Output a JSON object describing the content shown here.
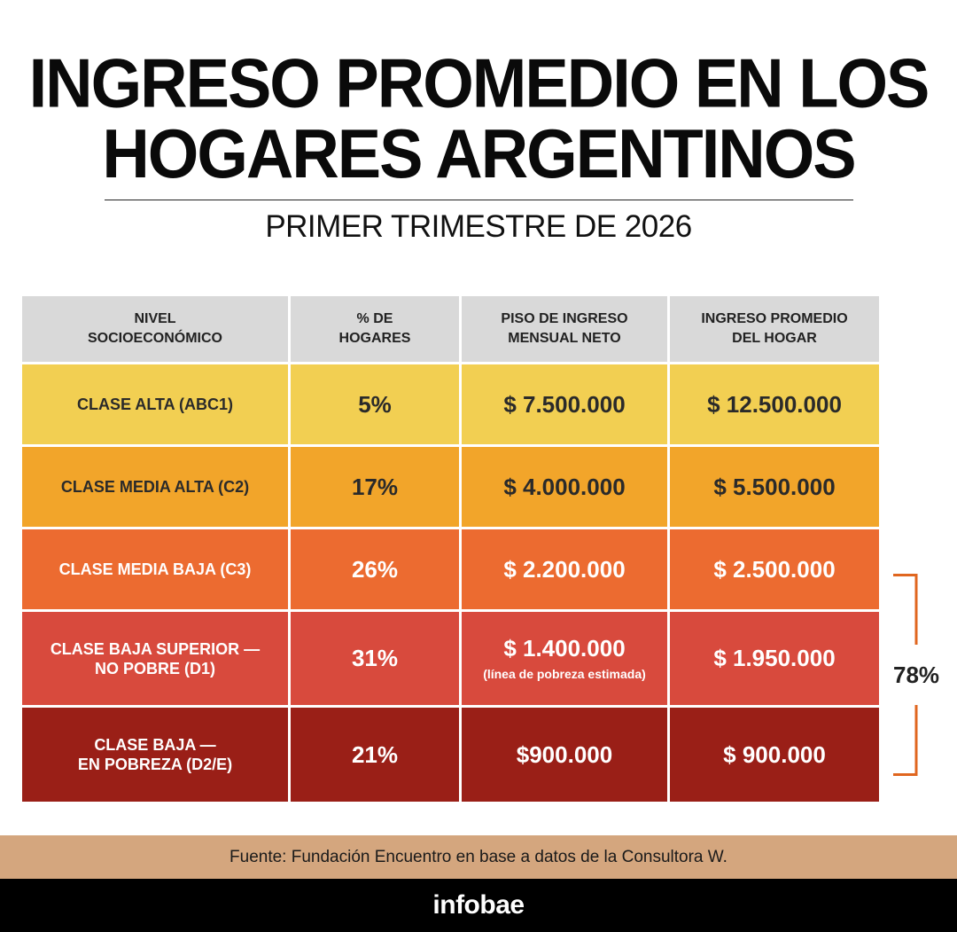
{
  "title": {
    "line1": "INGRESO PROMEDIO EN LOS",
    "line2": "HOGARES ARGENTINOS"
  },
  "subtitle": "PRIMER TRIMESTRE DE 2026",
  "chart_data": {
    "type": "table",
    "title": "INGRESO PROMEDIO EN LOS HOGARES ARGENTINOS",
    "subtitle": "PRIMER TRIMESTRE DE 2026",
    "columns": [
      [
        "NIVEL",
        "SOCIOECONÓMICO"
      ],
      [
        "% DE",
        "HOGARES"
      ],
      [
        "PISO DE INGRESO",
        "MENSUAL NETO"
      ],
      [
        "INGRESO PROMEDIO",
        "DEL HOGAR"
      ]
    ],
    "rows": [
      {
        "label": [
          "CLASE ALTA (ABC1)"
        ],
        "pct": "5%",
        "piso": "$ 7.500.000",
        "promedio": "$ 12.500.000",
        "note": "",
        "bg": "#f2cf52",
        "fg": "#2a2a2a"
      },
      {
        "label": [
          "CLASE MEDIA ALTA (C2)"
        ],
        "pct": "17%",
        "piso": "$ 4.000.000",
        "promedio": "$ 5.500.000",
        "note": "",
        "bg": "#f2a52a",
        "fg": "#2a2a2a"
      },
      {
        "label": [
          "CLASE MEDIA BAJA (C3)"
        ],
        "pct": "26%",
        "piso": "$ 2.200.000",
        "promedio": "$ 2.500.000",
        "note": "",
        "bg": "#ec6b30",
        "fg": "#ffffff"
      },
      {
        "label": [
          "CLASE BAJA SUPERIOR —",
          "NO POBRE (D1)"
        ],
        "pct": "31%",
        "piso": "$ 1.400.000",
        "promedio": "$ 1.950.000",
        "note": "(línea de pobreza estimada)",
        "bg": "#d84a3d",
        "fg": "#ffffff"
      },
      {
        "label": [
          "CLASE BAJA —",
          "EN POBREZA (D2/E)"
        ],
        "pct": "21%",
        "piso": "$900.000",
        "promedio": "$ 900.000",
        "note": "",
        "bg": "#9a1f17",
        "fg": "#ffffff"
      }
    ],
    "bracket_label": "78%",
    "bracket_color": "#e0661f"
  },
  "footer": {
    "source": "Fuente: Fundación Encuentro en base a datos de la Consultora W.",
    "logo": "infobae"
  }
}
